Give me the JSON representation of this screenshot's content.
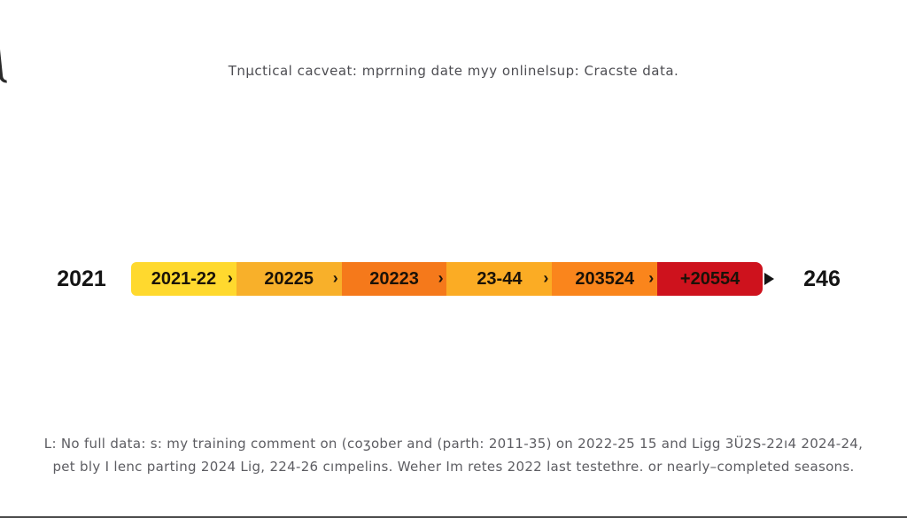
{
  "caption": "Tnμctical cacveat: mprrning date myy onlinelsup: Cracste data.",
  "chart_data": {
    "type": "timeline",
    "title": "Tnμctical cacveat: mprrning date myy onlinelsup: Cracste data.",
    "start_label": "2021",
    "end_label": "246",
    "separator_glyph": "›",
    "segments": [
      {
        "label": "2021-22",
        "color": "#FFD92E"
      },
      {
        "label": "20225",
        "color": "#F8B02A"
      },
      {
        "label": "20223",
        "color": "#F5791B"
      },
      {
        "label": "23-44",
        "color": "#FBAC24"
      },
      {
        "label": "203524",
        "color": "#FA851C"
      },
      {
        "label": "+20554",
        "color": "#CE121D"
      }
    ]
  },
  "footnote": {
    "line1": "L: No full data: s: my training comment on (coʒober and (parth: 2011-35) on 2022-25 15 and Ligg 3Ü2S-22ı4 2024-24,",
    "line2": "pet bly I lenc parting 2024 Lig, 224-26 cımpelins. Weher Im retes 2022 last testethre. or nearly–completed seasons."
  }
}
